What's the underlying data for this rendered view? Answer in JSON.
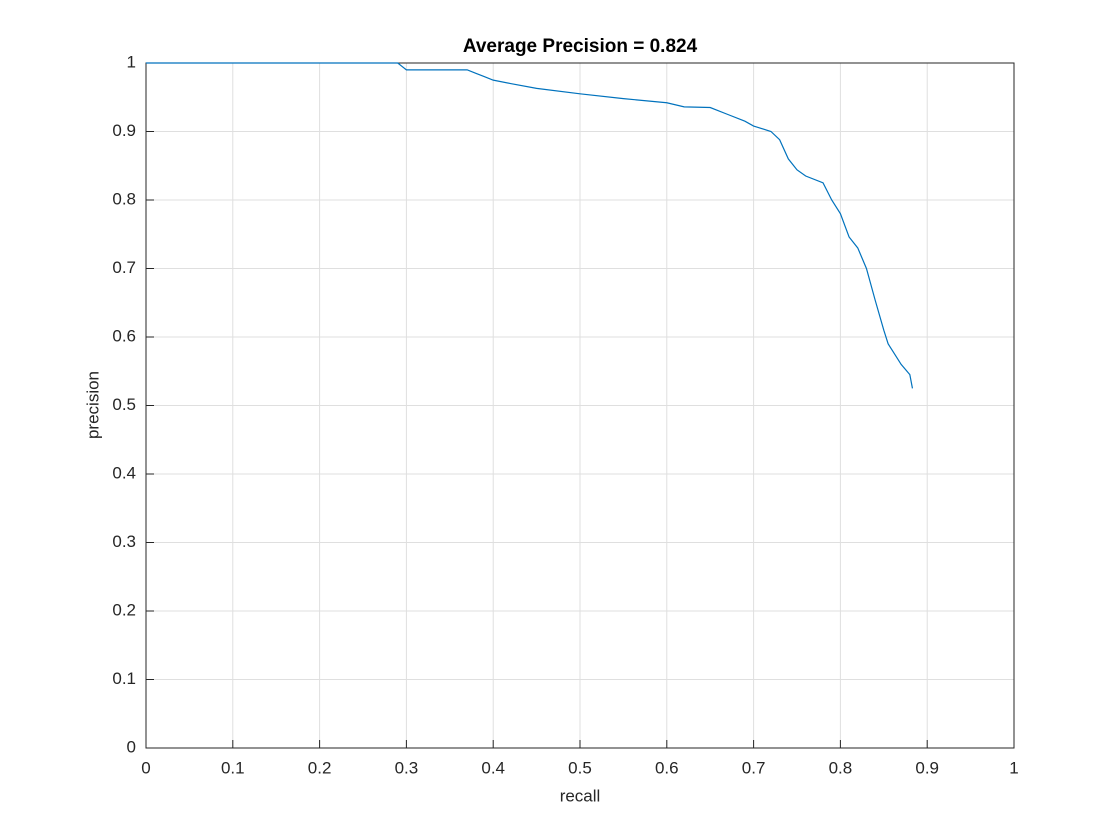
{
  "chart_data": {
    "type": "line",
    "title": "Average Precision = 0.824",
    "x_label": "recall",
    "y_label": "precision",
    "x": [
      0,
      0.29,
      0.295,
      0.3,
      0.37,
      0.38,
      0.39,
      0.4,
      0.42,
      0.45,
      0.5,
      0.55,
      0.6,
      0.62,
      0.65,
      0.67,
      0.69,
      0.7,
      0.72,
      0.73,
      0.74,
      0.75,
      0.76,
      0.78,
      0.79,
      0.8,
      0.81,
      0.82,
      0.83,
      0.84,
      0.85,
      0.855,
      0.86,
      0.87,
      0.88,
      0.883
    ],
    "series": [
      {
        "color": "#0072bd",
        "values": [
          1,
          1,
          0.995,
          0.99,
          0.99,
          0.985,
          0.98,
          0.975,
          0.97,
          0.963,
          0.955,
          0.948,
          0.942,
          0.936,
          0.935,
          0.925,
          0.915,
          0.908,
          0.9,
          0.888,
          0.86,
          0.844,
          0.835,
          0.825,
          0.8,
          0.78,
          0.746,
          0.73,
          0.7,
          0.654,
          0.61,
          0.59,
          0.58,
          0.56,
          0.545,
          0.525
        ]
      }
    ],
    "xlim": [
      0,
      1
    ],
    "ylim": [
      0,
      1
    ],
    "xticks": [
      0,
      0.1,
      0.2,
      0.3,
      0.4,
      0.5,
      0.6,
      0.7,
      0.8,
      0.9,
      1
    ],
    "yticks": [
      0,
      0.1,
      0.2,
      0.3,
      0.4,
      0.5,
      0.6,
      0.7,
      0.8,
      0.9,
      1
    ],
    "grid": true
  }
}
